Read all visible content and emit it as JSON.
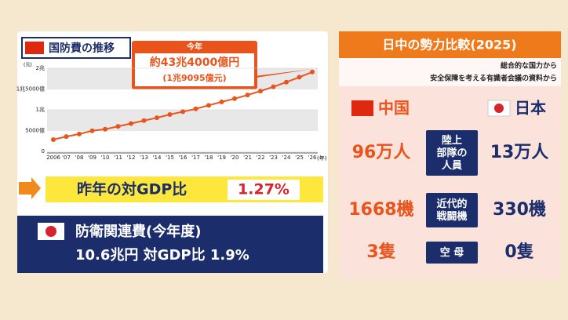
{
  "chart_data": {
    "type": "line",
    "title": "国防費の推移",
    "categories": [
      "2006",
      "'07",
      "'08",
      "'09",
      "'10",
      "'11",
      "'12",
      "'13",
      "'14",
      "'15",
      "'16",
      "'17",
      "'18",
      "'19",
      "'20",
      "'21",
      "'22",
      "'23",
      "'24",
      "'25",
      "'26"
    ],
    "x_unit": "(年)",
    "y_unit": "(元)",
    "series": [
      {
        "color": "#e8541c",
        "values": [
          2838,
          3555,
          4178,
          4951,
          5321,
          6011,
          6703,
          7410,
          8082,
          8869,
          9543,
          10226,
          11070,
          11899,
          12680,
          13553,
          14505,
          15537,
          16655,
          17847,
          19095
        ]
      }
    ],
    "ylim": [
      0,
      20000
    ],
    "yticks": [
      0,
      {
        "value": 5000,
        "label": "5000億"
      },
      {
        "value": 10000,
        "label": "1兆"
      },
      {
        "value": 15000,
        "label": "1兆5000億"
      },
      {
        "value": 20000,
        "label": "2兆"
      }
    ],
    "annotation": {
      "head": "今年",
      "text": "約43兆4000億円",
      "sub": "(1兆9095億元)"
    }
  },
  "gdp": {
    "label": "昨年の対GDP比",
    "value": "1.27%"
  },
  "japan_budget": {
    "title": "防衛関連費(今年度)",
    "text": "10.6兆円 対GDP比 1.9%"
  },
  "comparison": {
    "title": "日中の勢力比較(2025)",
    "source": [
      "総合的な国力から",
      "安全保障を考える有識者会議の資料から"
    ],
    "left": "中国",
    "right": "日本",
    "rows": [
      [
        "96万人",
        "陸上\n部隊の\n人員",
        "13万人"
      ],
      [
        "1668機",
        "近代的\n戦闘機",
        "330機"
      ],
      [
        "3隻",
        "空 母",
        "0隻"
      ]
    ]
  }
}
